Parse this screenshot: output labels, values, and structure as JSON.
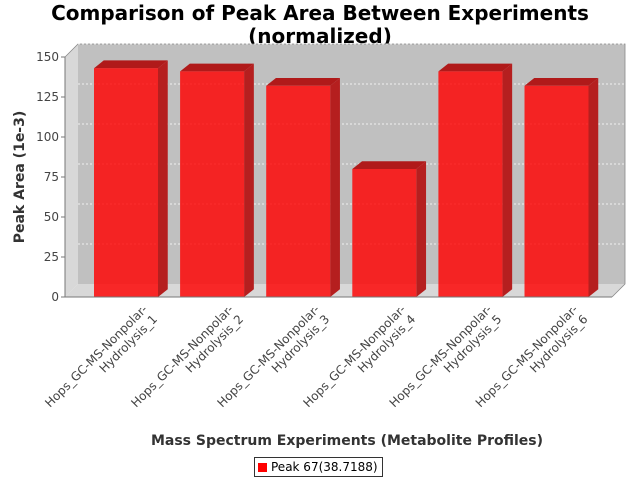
{
  "chart_data": {
    "type": "bar",
    "title_lines": [
      "Comparison of Peak Area Between Experiments",
      "(normalized)"
    ],
    "xlabel": "Mass Spectrum Experiments (Metabolite Profiles)",
    "ylabel": "Peak Area (1e-3)",
    "ylim": [
      0,
      150
    ],
    "yticks": [
      "0",
      "25",
      "50",
      "75",
      "100",
      "125",
      "150"
    ],
    "grid": true,
    "legend_position": "bottom",
    "categories": [
      [
        "Hops_GC-MS-Nonpolar-",
        "Hydrolysis_1"
      ],
      [
        "Hops_GC-MS-Nonpolar-",
        "Hydrolysis_2"
      ],
      [
        "Hops_GC-MS-Nonpolar-",
        "Hydrolysis_3"
      ],
      [
        "Hops_GC-MS-Nonpolar-",
        "Hydrolysis_4"
      ],
      [
        "Hops_GC-MS-Nonpolar-",
        "Hydrolysis_5"
      ],
      [
        "Hops_GC-MS-Nonpolar-",
        "Hydrolysis_6"
      ]
    ],
    "series": [
      {
        "name": "Peak 67(38.7188)",
        "color": "#ff0000",
        "values": [
          143,
          141,
          132,
          80,
          141,
          132
        ]
      }
    ]
  }
}
